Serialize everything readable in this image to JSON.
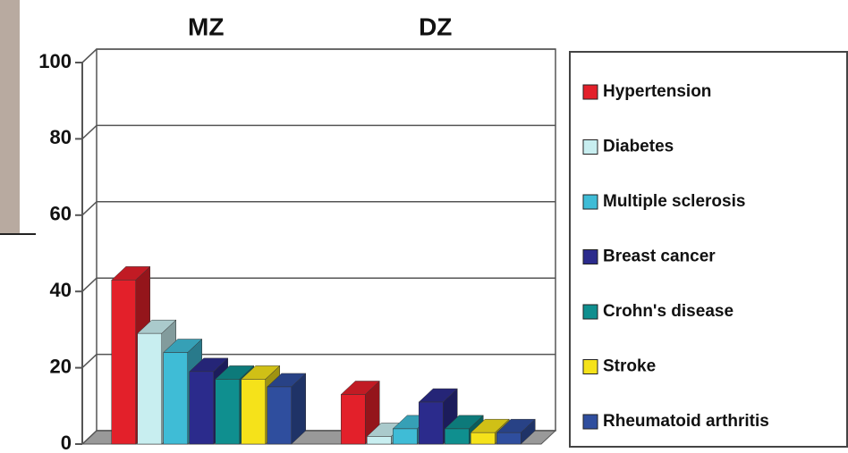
{
  "chart_data": {
    "type": "bar",
    "categories": [
      "MZ",
      "DZ"
    ],
    "series": [
      {
        "name": "Hypertension",
        "color": "#e3202a",
        "values": [
          43,
          13
        ]
      },
      {
        "name": "Diabetes",
        "color": "#c8eef0",
        "values": [
          29,
          2
        ]
      },
      {
        "name": "Multiple sclerosis",
        "color": "#3fbcd6",
        "values": [
          24,
          4
        ]
      },
      {
        "name": "Breast cancer",
        "color": "#2b2b8c",
        "values": [
          19,
          11
        ]
      },
      {
        "name": "Crohn's disease",
        "color": "#0f8f8f",
        "values": [
          17,
          4
        ]
      },
      {
        "name": "Stroke",
        "color": "#f5e21a",
        "values": [
          17,
          3
        ]
      },
      {
        "name": "Rheumatoid arthritis",
        "color": "#2f4e9e",
        "values": [
          15,
          3
        ]
      }
    ],
    "ylim": [
      0,
      100
    ],
    "yticks": [
      0,
      20,
      40,
      60,
      80,
      100
    ],
    "grid": true,
    "legend": "right"
  }
}
